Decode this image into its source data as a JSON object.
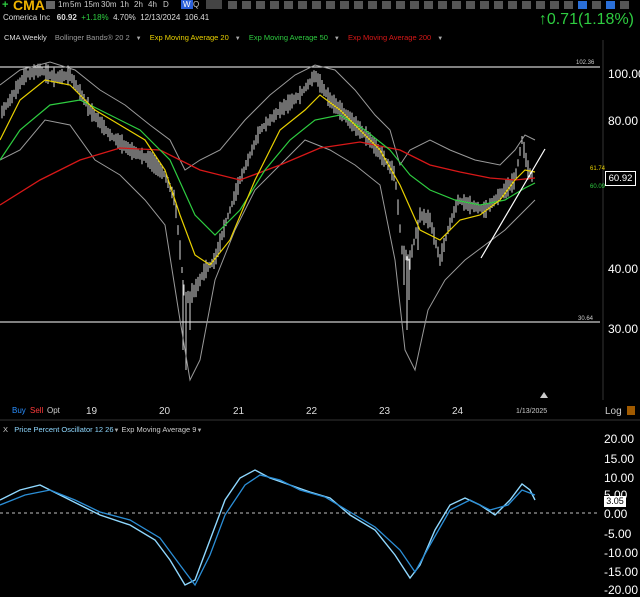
{
  "symbol": "CMA",
  "timeframes": [
    "1m",
    "5m",
    "15m",
    "30m",
    "1h",
    "2h",
    "4h",
    "D",
    "W",
    "Q"
  ],
  "active_timeframe": "W",
  "info": {
    "name": "Comerica Inc",
    "price": "60.92",
    "change": "+1.18%",
    "range_pct": "4.70%",
    "date": "12/13/2024",
    "high": "106.41"
  },
  "big_change": "↑0.71(1.18%)",
  "legend": {
    "chart_name": "CMA Weekly",
    "bb": "Bollinger Bands® 20 2",
    "ema20": "Exp Moving Average 20",
    "ema50": "Exp Moving Average 50",
    "ema200": "Exp Moving Average 200"
  },
  "price_axis": [
    "100.00",
    "80.00",
    "60.00",
    "40.00",
    "30.00"
  ],
  "level_labels": {
    "high": "102.36",
    "low": "30.64",
    "ema_a": "61.74",
    "ema_b": "60.09"
  },
  "current_price": "60.92",
  "year_labels": [
    "19",
    "20",
    "21",
    "22",
    "23",
    "24"
  ],
  "date_label": "1/13/2025",
  "actions": {
    "buy": "Buy",
    "sell": "Sell",
    "opt": "Opt",
    "log": "Log"
  },
  "osc_legend": {
    "close": "X",
    "ppo": "Price Percent Oscillator 12 26",
    "ema": "Exp Moving Average 9"
  },
  "osc_axis": [
    "20.00",
    "15.00",
    "10.00",
    "5.00",
    "0.00",
    "-5.00",
    "-10.00",
    "-15.00",
    "-20.00"
  ],
  "osc_current": "3.05",
  "colors": {
    "ema20": "#e8d000",
    "ema50": "#2ecc40",
    "ema200": "#d81818",
    "bb": "#9a9a9a",
    "ppo": "#29b6f6",
    "accent": "#f0b400"
  }
}
